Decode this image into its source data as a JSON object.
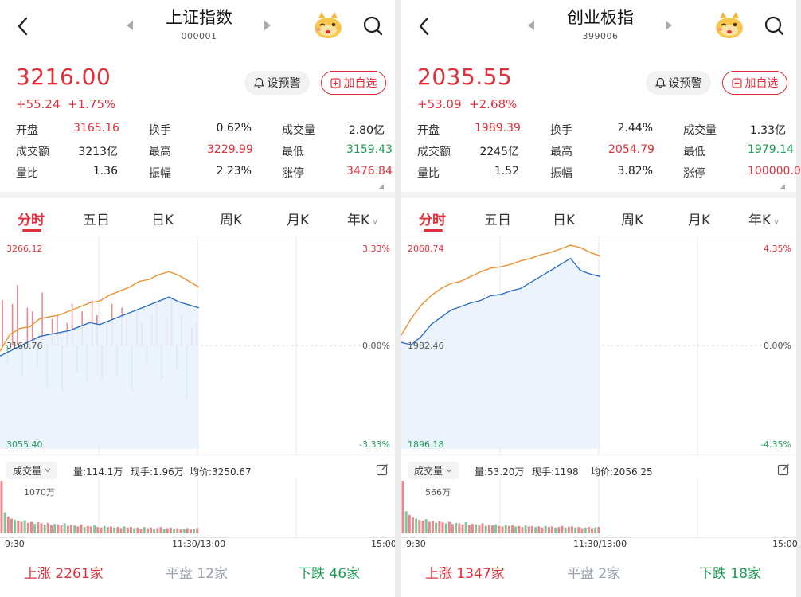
{
  "panels": [
    {
      "id": "left",
      "nav": {
        "title": "上证指数",
        "code": "000001"
      },
      "quote": {
        "price": "3216.00",
        "change": "+55.24",
        "change_pct": "+1.75%"
      },
      "buttons": {
        "alert": "设预警",
        "watch": "加自选"
      },
      "stats": [
        {
          "label": "开盘",
          "value": "3165.16",
          "color": "red"
        },
        {
          "label": "换手",
          "value": "0.62%",
          "color": "neutral"
        },
        {
          "label": "成交量",
          "value": "2.80亿",
          "color": "neutral"
        },
        {
          "label": "成交额",
          "value": "3213亿",
          "color": "neutral"
        },
        {
          "label": "最高",
          "value": "3229.99",
          "color": "red"
        },
        {
          "label": "最低",
          "value": "3159.43",
          "color": "green"
        },
        {
          "label": "量比",
          "value": "1.36",
          "color": "neutral"
        },
        {
          "label": "振幅",
          "value": "2.23%",
          "color": "neutral"
        },
        {
          "label": "涨停",
          "value": "3476.84",
          "color": "red"
        }
      ],
      "tabs": [
        "分时",
        "五日",
        "日K",
        "周K",
        "月K",
        "年K"
      ],
      "active_tab": 0,
      "chart_data": {
        "type": "line",
        "y_max_label": "3266.12",
        "y_mid_label": "3160.76",
        "y_min_label": "3055.40",
        "pct_max_label": "3.33%",
        "pct_mid_label": "0.00%",
        "pct_min_label": "-3.33%",
        "ylim": [
          3055.4,
          3266.12
        ],
        "prev_close": 3160.76,
        "x_labels": [
          "9:30",
          "11:30/13:00",
          "15:00"
        ],
        "series": [
          {
            "values": [
              3155,
              3172,
              3178,
              3180,
              3188,
              3190,
              3192,
              3196,
              3200,
              3204,
              3206,
              3212,
              3216,
              3220,
              3226,
              3228,
              3233,
              3236,
              3232,
              3226,
              3220
            ]
          },
          {
            "values": [
              3150,
              3155,
              3160,
              3165,
              3170,
              3172,
              3174,
              3176,
              3180,
              3184,
              3182,
              3186,
              3190,
              3194,
              3198,
              3202,
              3206,
              3210,
              3205,
              3202,
              3199
            ]
          }
        ],
        "activity_bars": [
          60,
          -25,
          55,
          80,
          -40,
          50,
          45,
          -30,
          70,
          -55,
          35,
          40,
          -60,
          30,
          55,
          -35,
          45,
          -50,
          60,
          40,
          -45,
          30,
          55,
          -40,
          50,
          35,
          -60,
          45,
          30,
          -25,
          40,
          55,
          -45,
          35,
          60,
          -30,
          40,
          -70,
          25,
          30
        ]
      },
      "volume": {
        "selector": "成交量",
        "info": [
          "量:114.1万",
          "现手:1.96万",
          "均价:3250.67"
        ],
        "max_label": "1070万",
        "bars": [
          100,
          40,
          32,
          28,
          26,
          24,
          22,
          25,
          20,
          22,
          18,
          21,
          19,
          17,
          20,
          16,
          18,
          17,
          15,
          19,
          14,
          16,
          15,
          13,
          17,
          12,
          14,
          13,
          15,
          12,
          11,
          14,
          12,
          13,
          11,
          12,
          10,
          13,
          11,
          12,
          10,
          11,
          9,
          12,
          10,
          11,
          9,
          10,
          12,
          9,
          10,
          11,
          9,
          10,
          8,
          9,
          10,
          8,
          9,
          10
        ]
      },
      "breadth": {
        "up_label": "上涨",
        "up_count": "2261家",
        "flat_label": "平盘",
        "flat_count": "12家",
        "down_label": "下跌",
        "down_count": "46家"
      }
    },
    {
      "id": "right",
      "nav": {
        "title": "创业板指",
        "code": "399006"
      },
      "quote": {
        "price": "2035.55",
        "change": "+53.09",
        "change_pct": "+2.68%"
      },
      "buttons": {
        "alert": "设预警",
        "watch": "加自选"
      },
      "stats": [
        {
          "label": "开盘",
          "value": "1989.39",
          "color": "red"
        },
        {
          "label": "换手",
          "value": "2.44%",
          "color": "neutral"
        },
        {
          "label": "成交量",
          "value": "1.33亿",
          "color": "neutral"
        },
        {
          "label": "成交额",
          "value": "2245亿",
          "color": "neutral"
        },
        {
          "label": "最高",
          "value": "2054.79",
          "color": "red"
        },
        {
          "label": "最低",
          "value": "1979.14",
          "color": "green"
        },
        {
          "label": "量比",
          "value": "1.52",
          "color": "neutral"
        },
        {
          "label": "振幅",
          "value": "3.82%",
          "color": "neutral"
        },
        {
          "label": "涨停",
          "value": "100000.0",
          "color": "red"
        }
      ],
      "tabs": [
        "分时",
        "五日",
        "日K",
        "周K",
        "月K",
        "年K"
      ],
      "active_tab": 0,
      "chart_data": {
        "type": "line",
        "y_max_label": "2068.74",
        "y_mid_label": "1982.46",
        "y_min_label": "1896.18",
        "pct_max_label": "4.35%",
        "pct_mid_label": "0.00%",
        "pct_min_label": "-4.35%",
        "ylim": [
          1896.18,
          2068.74
        ],
        "prev_close": 1982.46,
        "x_labels": [
          "9:30",
          "11:30/13:00",
          "15:00"
        ],
        "series": [
          {
            "values": [
              1991,
              2005,
              2016,
              2024,
              2030,
              2034,
              2036,
              2040,
              2044,
              2047,
              2048,
              2050,
              2053,
              2055,
              2058,
              2060,
              2063,
              2066,
              2064,
              2060,
              2057
            ]
          },
          {
            "values": [
              1985,
              1983,
              1990,
              2000,
              2006,
              2012,
              2015,
              2018,
              2020,
              2024,
              2025,
              2028,
              2030,
              2035,
              2040,
              2045,
              2050,
              2055,
              2045,
              2042,
              2040
            ]
          }
        ],
        "activity_bars": []
      },
      "volume": {
        "selector": "成交量",
        "info": [
          "量:53.20万",
          "现手:1198",
          "均价:2056.25"
        ],
        "max_label": "566万",
        "bars": [
          100,
          42,
          35,
          30,
          28,
          26,
          24,
          27,
          22,
          24,
          20,
          23,
          21,
          19,
          22,
          18,
          20,
          19,
          17,
          21,
          16,
          18,
          17,
          15,
          19,
          14,
          16,
          15,
          17,
          14,
          13,
          16,
          14,
          15,
          13,
          14,
          12,
          15,
          13,
          14,
          12,
          13,
          11,
          14,
          12,
          13,
          11,
          12,
          14,
          11,
          12,
          13,
          11,
          12,
          10,
          11,
          12,
          10,
          11,
          12
        ]
      },
      "breadth": {
        "up_label": "上涨",
        "up_count": "1347家",
        "flat_label": "平盘",
        "flat_count": "2家",
        "down_label": "下跌",
        "down_count": "18家"
      }
    }
  ],
  "colors": {
    "up": "#e0313b",
    "down": "#1f9d55",
    "price_line": "#e8922f",
    "avg_line": "#2f6fc6",
    "fill": "#e8f1fb",
    "grid": "#e6e6e6",
    "muted": "#9aa3ad"
  }
}
